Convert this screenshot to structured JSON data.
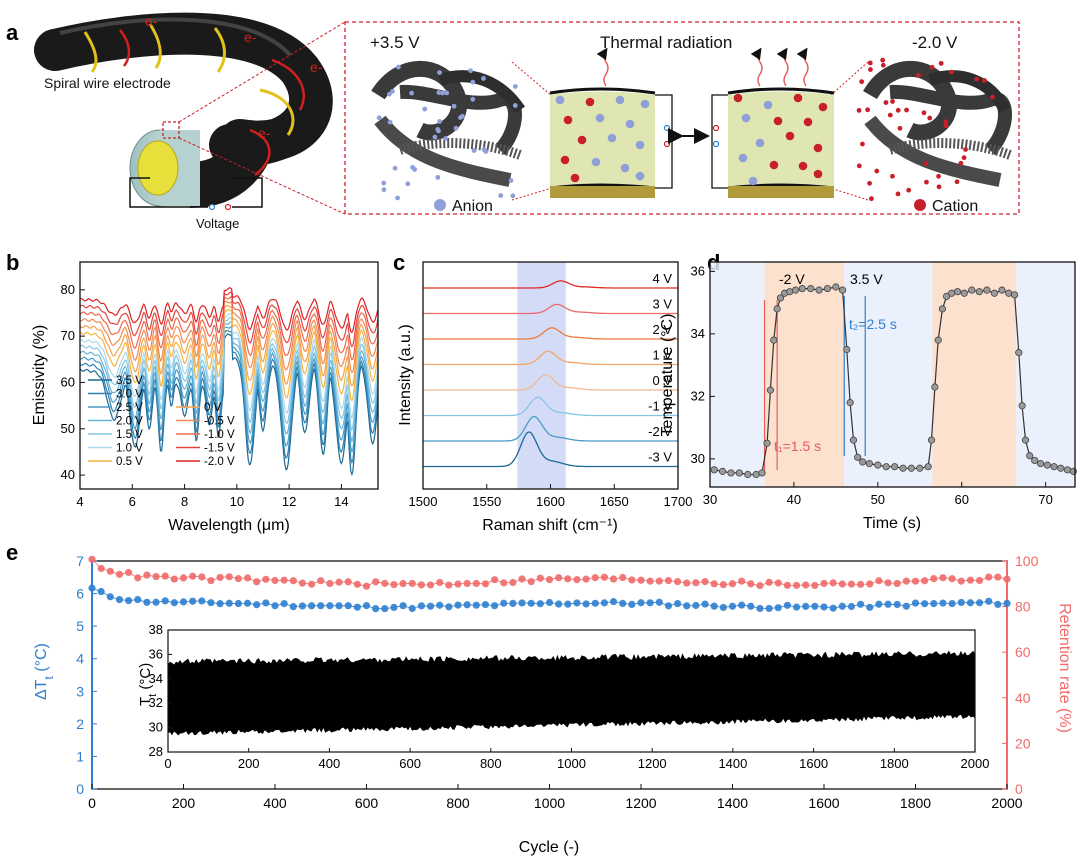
{
  "panel_letters": {
    "a": "a",
    "b": "b",
    "c": "c",
    "d": "d",
    "e": "e"
  },
  "colors": {
    "anion": "#8f9fd8",
    "cation": "#c8202a",
    "dash_red": "#d0202a",
    "left_axis_blue": "#2f7fd0",
    "right_axis_red": "#f06a6a",
    "band_blue": "#c9d2f5",
    "band_orange": "#fbdcc7",
    "band_lightblue": "#e8eefb"
  },
  "panel_a": {
    "electron_label": "e-",
    "wire_label": "Spiral wire electrode",
    "voltage_label": "Voltage",
    "left_voltage": "+3.5 V",
    "center_title": "Thermal radiation",
    "right_voltage": "-2.0 V",
    "anion_label": "Anion",
    "cation_label": "Cation"
  },
  "chart_data": [
    {
      "id": "b",
      "type": "line",
      "title": "",
      "xlabel": "Wavelength (μm)",
      "ylabel": "Emissivity (%)",
      "xlim": [
        4,
        15.4
      ],
      "ylim": [
        37,
        86
      ],
      "xticks": [
        4,
        6,
        8,
        10,
        12,
        14
      ],
      "yticks": [
        40,
        50,
        60,
        70,
        80
      ],
      "legend_col1": [
        "3.5 V",
        "3.0 V",
        "2.5 V",
        "2.0 V",
        "1.5 V",
        "1.0 V",
        "0.5 V"
      ],
      "legend_col2": [
        "0 V",
        "-0.5 V",
        "-1.0 V",
        "-1.5 V",
        "-2.0 V"
      ],
      "series": [
        {
          "name": "3.5 V",
          "color": "#1c6a96",
          "low": 40,
          "high": 75
        },
        {
          "name": "3.0 V",
          "color": "#2f84b4",
          "low": 42.5,
          "high": 75.6
        },
        {
          "name": "2.5 V",
          "color": "#4a9cc8",
          "low": 45,
          "high": 76.2
        },
        {
          "name": "2.0 V",
          "color": "#67b3d9",
          "low": 47.5,
          "high": 76.8
        },
        {
          "name": "1.5 V",
          "color": "#86c6e4",
          "low": 50,
          "high": 77.4
        },
        {
          "name": "1.0 V",
          "color": "#a8d7ee",
          "low": 52.5,
          "high": 78
        },
        {
          "name": "0.5 V",
          "color": "#f5b540",
          "low": 56,
          "high": 78.6
        },
        {
          "name": "0 V",
          "color": "#f3a24e",
          "low": 59,
          "high": 79.2
        },
        {
          "name": "-0.5 V",
          "color": "#f08a55",
          "low": 62,
          "high": 79.8
        },
        {
          "name": "-1.0 V",
          "color": "#ec6a4e",
          "low": 65,
          "high": 80.4
        },
        {
          "name": "-1.5 V",
          "color": "#e34440",
          "low": 68,
          "high": 81
        },
        {
          "name": "-2.0 V",
          "color": "#dd2222",
          "low": 71,
          "high": 81.6
        }
      ]
    },
    {
      "id": "c",
      "type": "line",
      "title": "",
      "xlabel": "Raman shift (cm⁻¹)",
      "ylabel": "Intensity (a.u.)",
      "xlim": [
        1500,
        1700
      ],
      "xticks": [
        1500,
        1550,
        1600,
        1650,
        1700
      ],
      "band": [
        1574,
        1612
      ],
      "series": [
        {
          "name": "4 V",
          "color": "#e02a24",
          "center": 1608,
          "amp": 7
        },
        {
          "name": "3 V",
          "color": "#ec6a6a",
          "center": 1605,
          "amp": 9
        },
        {
          "name": "2 V",
          "color": "#ee7a40",
          "center": 1601,
          "amp": 11
        },
        {
          "name": "1 V",
          "color": "#f2a66a",
          "center": 1598,
          "amp": 13
        },
        {
          "name": "0 V",
          "color": "#f4b890",
          "center": 1596,
          "amp": 15
        },
        {
          "name": "-1 V",
          "color": "#86c6e4",
          "center": 1590,
          "amp": 18
        },
        {
          "name": "-2 V",
          "color": "#4a9cc8",
          "center": 1587,
          "amp": 24
        },
        {
          "name": "-3 V",
          "color": "#1c6a96",
          "center": 1583,
          "amp": 34
        }
      ]
    },
    {
      "id": "d",
      "type": "line",
      "title": "",
      "xlabel": "Time (s)",
      "ylabel": "Temperature (°C)",
      "xlim": [
        30,
        73.5
      ],
      "ylim": [
        29.1,
        36.3
      ],
      "xticks": [
        30,
        40,
        50,
        60,
        70
      ],
      "yticks": [
        30,
        32,
        34,
        36
      ],
      "label_neg": "-2 V",
      "label_pos": "3.5 V",
      "t1_label": "t₁=1.5 s",
      "t2_label": "t₂=2.5 s",
      "marker_lines": {
        "red": [
          36.5,
          38
        ],
        "blue": [
          46,
          48.5
        ]
      },
      "bands": [
        {
          "range": [
            30,
            36.5
          ],
          "kind": "blue"
        },
        {
          "range": [
            36.5,
            46
          ],
          "kind": "orange"
        },
        {
          "range": [
            46,
            56.5
          ],
          "kind": "blue"
        },
        {
          "range": [
            56.5,
            66.5
          ],
          "kind": "orange"
        },
        {
          "range": [
            66.5,
            73.5
          ],
          "kind": "blue"
        }
      ],
      "x": [
        30.5,
        31.5,
        32.5,
        33.5,
        34.5,
        35.5,
        36.2,
        36.8,
        37.2,
        37.6,
        38,
        38.4,
        38.9,
        39.5,
        40.2,
        41,
        42,
        43,
        44,
        45,
        45.8,
        46.3,
        46.7,
        47.1,
        47.6,
        48.2,
        49,
        50,
        51,
        52,
        53,
        54,
        55,
        56,
        56.4,
        56.8,
        57.2,
        57.7,
        58.2,
        58.8,
        59.5,
        60.3,
        61.2,
        62.1,
        63,
        63.9,
        64.8,
        65.6,
        66.3,
        66.8,
        67.2,
        67.6,
        68.1,
        68.7,
        69.4,
        70.2,
        71,
        71.8,
        72.6,
        73.3
      ],
      "values": [
        29.65,
        29.6,
        29.55,
        29.55,
        29.5,
        29.5,
        29.55,
        30.5,
        32.2,
        33.8,
        34.8,
        35.15,
        35.3,
        35.35,
        35.4,
        35.45,
        35.45,
        35.4,
        35.45,
        35.5,
        35.4,
        33.5,
        31.8,
        30.6,
        30.05,
        29.9,
        29.85,
        29.8,
        29.75,
        29.75,
        29.7,
        29.7,
        29.7,
        29.75,
        30.6,
        32.3,
        33.8,
        34.8,
        35.2,
        35.3,
        35.35,
        35.3,
        35.4,
        35.35,
        35.4,
        35.3,
        35.4,
        35.3,
        35.25,
        33.4,
        31.7,
        30.6,
        30.1,
        29.95,
        29.85,
        29.8,
        29.75,
        29.7,
        29.65,
        29.6
      ]
    },
    {
      "id": "e",
      "type": "scatter",
      "title": "",
      "xlabel": "Cycle (-)",
      "ylabel_left": "ΔT",
      "ylabel_left_sub": "t",
      "ylabel_left_unit": " (°C)",
      "ylabel_right": "Retention rate (%)",
      "xlim": [
        0,
        2000
      ],
      "ylim_left": [
        0,
        7
      ],
      "ylim_right": [
        0,
        100
      ],
      "xticks": [
        0,
        200,
        400,
        600,
        800,
        1000,
        1200,
        1400,
        1600,
        1800,
        2000
      ],
      "yticks_left": [
        0,
        1,
        2,
        3,
        4,
        5,
        6,
        7
      ],
      "yticks_right": [
        0,
        20,
        40,
        60,
        80,
        100
      ],
      "series": [
        {
          "name": "ΔTt",
          "axis": "left",
          "color": "#2f7fd0",
          "start": 6.15,
          "mean": 5.65,
          "jitter": 0.08
        },
        {
          "name": "Retention rate",
          "axis": "right",
          "color": "#f06a6a",
          "start": 100,
          "mean": 91,
          "jitter": 1.5
        }
      ],
      "inset": {
        "ylabel": "T",
        "ylabel_sub": "t",
        "ylabel_unit": " (°C)",
        "xlim": [
          0,
          2000
        ],
        "ylim": [
          28,
          38
        ],
        "xticks": [
          0,
          200,
          400,
          600,
          800,
          1000,
          1200,
          1400,
          1600,
          1800,
          2000
        ],
        "yticks": [
          28,
          30,
          32,
          34,
          36,
          38
        ],
        "upper_start": 35.4,
        "upper_end": 36.1,
        "lower_start": 29.5,
        "lower_end": 30.9
      }
    }
  ]
}
